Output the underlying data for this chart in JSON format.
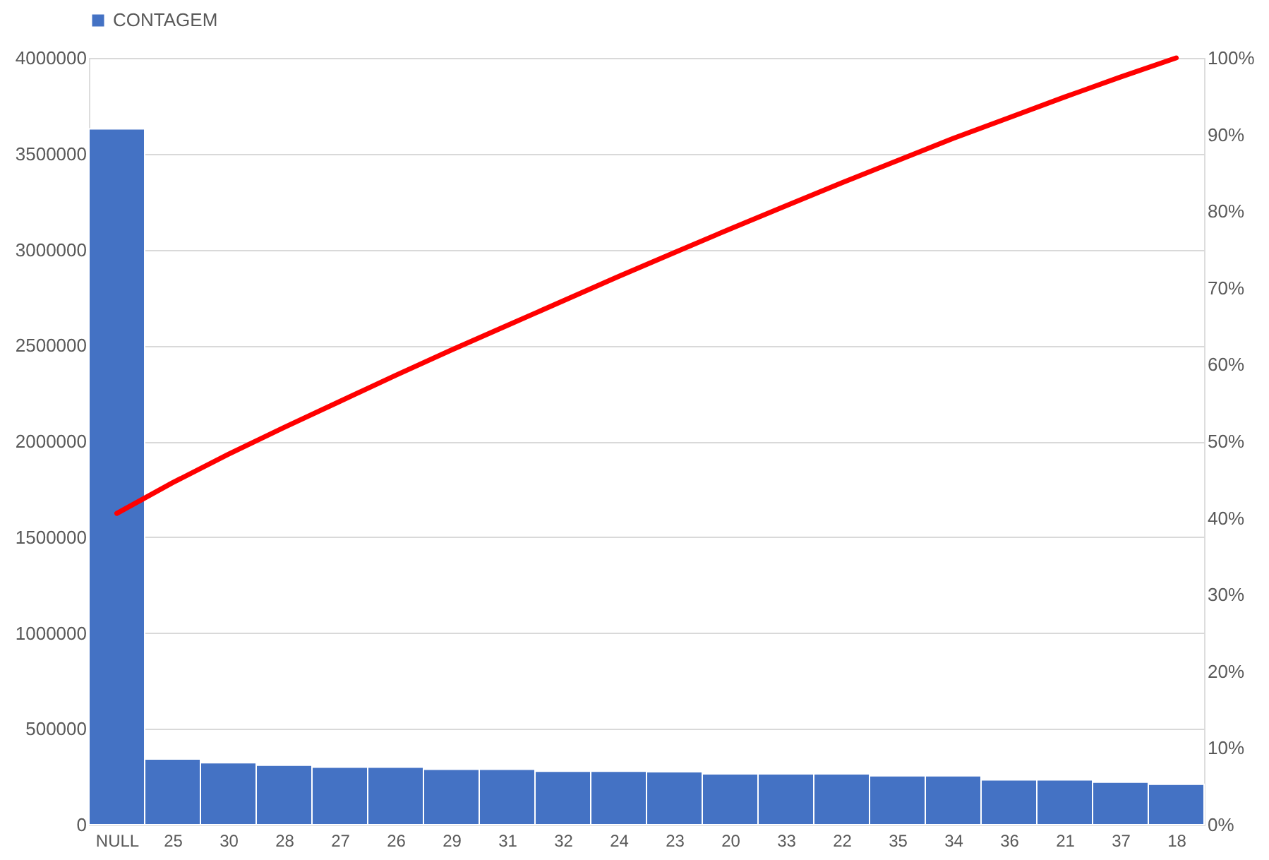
{
  "chart_data": {
    "type": "bar",
    "categories": [
      "NULL",
      "25",
      "30",
      "28",
      "27",
      "26",
      "29",
      "31",
      "32",
      "24",
      "23",
      "20",
      "33",
      "22",
      "35",
      "34",
      "36",
      "21",
      "37",
      "18"
    ],
    "series": [
      {
        "name": "CONTAGEM",
        "color": "#4472c4",
        "values": [
          3630000,
          343000,
          323000,
          310000,
          300000,
          300000,
          289000,
          289000,
          279000,
          279000,
          276000,
          265000,
          265000,
          265000,
          255000,
          255000,
          234000,
          234000,
          222000,
          211000
        ]
      },
      {
        "type": "line",
        "axis": "y2",
        "color": "#ff0000",
        "values": [
          40.6,
          44.6,
          48.3,
          51.8,
          55.2,
          58.6,
          61.9,
          65.1,
          68.3,
          71.5,
          74.6,
          77.7,
          80.7,
          83.7,
          86.6,
          89.5,
          92.2,
          94.9,
          97.5,
          100
        ]
      }
    ],
    "ylim": [
      0,
      4000000
    ],
    "yticks": [
      0,
      500000,
      1000000,
      1500000,
      2000000,
      2500000,
      3000000,
      3500000,
      4000000
    ],
    "y2lim": [
      0,
      100
    ],
    "y2ticks": [
      {
        "value": 0,
        "label": "0%"
      },
      {
        "value": 10,
        "label": "10%"
      },
      {
        "value": 20,
        "label": "20%"
      },
      {
        "value": 30,
        "label": "30%"
      },
      {
        "value": 40,
        "label": "40%"
      },
      {
        "value": 50,
        "label": "50%"
      },
      {
        "value": 60,
        "label": "60%"
      },
      {
        "value": 70,
        "label": "70%"
      },
      {
        "value": 80,
        "label": "80%"
      },
      {
        "value": 90,
        "label": "90%"
      },
      {
        "value": 100,
        "label": "100%"
      }
    ],
    "grid": "y",
    "legend": "top",
    "marker": "none",
    "line_style": "solid"
  }
}
